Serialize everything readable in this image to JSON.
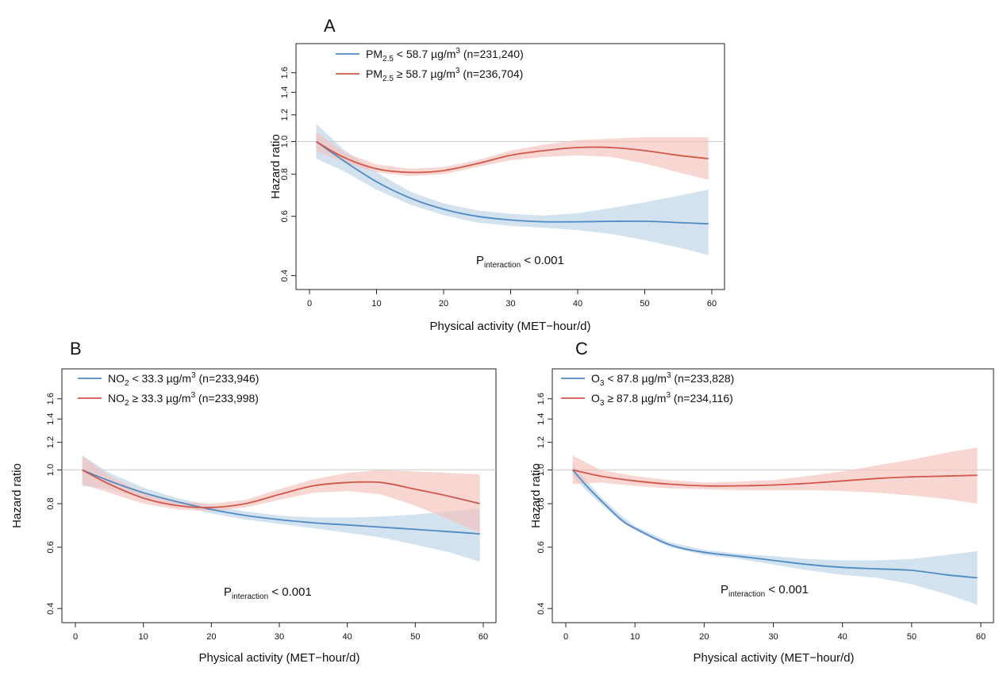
{
  "figure": {
    "colors": {
      "blue": "#4f8ac4",
      "blue_band": "#bcd3e6",
      "red": "#d1574a",
      "red_band": "#f4c2bc",
      "ref_line": "#cccccc"
    }
  },
  "chart_data": [
    {
      "type": "line",
      "panel": "A",
      "xlabel": "Physical activity (MET−hour/d)",
      "ylabel": "Hazard ratio",
      "y_scale": "log",
      "xlim": [
        0,
        62
      ],
      "ylim": [
        0.38,
        1.9
      ],
      "x_ticks": [
        0,
        10,
        20,
        30,
        40,
        50,
        60
      ],
      "y_ticks": [
        0.4,
        0.6,
        0.8,
        1.0,
        1.2,
        1.4,
        1.6
      ],
      "y_tick_labels": [
        "0.4",
        "0.6",
        "0.8",
        "1.0",
        "1.2",
        "1.4",
        "1.6"
      ],
      "reference_line": 1.0,
      "annotation": {
        "main": "P",
        "sub": "interaction",
        "rest": " < 0.001"
      },
      "series": [
        {
          "name": "PM2.5 < 58.7 µg/m3 (n=231,240)",
          "legend": {
            "main": "PM",
            "sub": "2.5",
            "mid": " < 58.7 µg/m",
            "sup": "3",
            "rest": " (n=231,240)"
          },
          "color": "blue",
          "x": [
            1,
            5,
            10,
            15,
            20,
            25,
            30,
            35,
            40,
            45,
            50,
            55,
            59.5
          ],
          "y": [
            1.0,
            0.88,
            0.76,
            0.68,
            0.63,
            0.6,
            0.585,
            0.578,
            0.578,
            0.58,
            0.58,
            0.575,
            0.57
          ],
          "lower": [
            0.89,
            0.82,
            0.72,
            0.65,
            0.605,
            0.575,
            0.562,
            0.555,
            0.546,
            0.532,
            0.51,
            0.485,
            0.46
          ],
          "upper": [
            1.13,
            0.95,
            0.81,
            0.71,
            0.655,
            0.625,
            0.61,
            0.603,
            0.613,
            0.635,
            0.66,
            0.69,
            0.72
          ]
        },
        {
          "name": "PM2.5 ≥ 58.7 µg/m3 (n=236,704)",
          "legend": {
            "main": "PM",
            "sub": "2.5",
            "mid": " ≥ 58.7 µg/m",
            "sup": "3",
            "rest": " (n=236,704)"
          },
          "color": "red",
          "x": [
            1,
            5,
            10,
            15,
            20,
            25,
            30,
            35,
            40,
            45,
            50,
            55,
            59.5
          ],
          "y": [
            1.0,
            0.9,
            0.83,
            0.81,
            0.82,
            0.86,
            0.91,
            0.94,
            0.96,
            0.96,
            0.94,
            0.91,
            0.89
          ],
          "lower": [
            0.94,
            0.87,
            0.81,
            0.79,
            0.8,
            0.84,
            0.88,
            0.9,
            0.91,
            0.9,
            0.86,
            0.81,
            0.77
          ],
          "upper": [
            1.07,
            0.93,
            0.855,
            0.83,
            0.84,
            0.88,
            0.94,
            0.98,
            1.01,
            1.02,
            1.03,
            1.03,
            1.03
          ]
        }
      ]
    },
    {
      "type": "line",
      "panel": "B",
      "xlabel": "Physical activity (MET−hour/d)",
      "ylabel": "Hazard ratio",
      "y_scale": "log",
      "xlim": [
        -1,
        62
      ],
      "ylim": [
        0.38,
        1.9
      ],
      "x_ticks": [
        0,
        10,
        20,
        30,
        40,
        50,
        60
      ],
      "y_ticks": [
        0.4,
        0.6,
        0.8,
        1.0,
        1.2,
        1.4,
        1.6
      ],
      "y_tick_labels": [
        "0.4",
        "0.6",
        "0.8",
        "1.0",
        "1.2",
        "1.4",
        "1.6"
      ],
      "reference_line": 1.0,
      "annotation": {
        "main": "P",
        "sub": "interaction",
        "rest": " < 0.001"
      },
      "series": [
        {
          "name": "NO2 < 33.3 µg/m3 (n=233,946)",
          "legend": {
            "main": "NO",
            "sub": "2",
            "mid": " < 33.3 µg/m",
            "sup": "3",
            "rest": " (n=233,946)"
          },
          "color": "blue",
          "x": [
            1,
            5,
            10,
            15,
            20,
            25,
            30,
            35,
            40,
            45,
            50,
            55,
            59.5
          ],
          "y": [
            1.0,
            0.93,
            0.86,
            0.81,
            0.77,
            0.74,
            0.72,
            0.705,
            0.695,
            0.685,
            0.675,
            0.665,
            0.655
          ],
          "lower": [
            0.9,
            0.88,
            0.83,
            0.79,
            0.75,
            0.72,
            0.7,
            0.68,
            0.66,
            0.64,
            0.61,
            0.58,
            0.545
          ],
          "upper": [
            1.1,
            0.98,
            0.89,
            0.83,
            0.79,
            0.76,
            0.74,
            0.73,
            0.73,
            0.735,
            0.745,
            0.76,
            0.775
          ]
        },
        {
          "name": "NO2 ≥ 33.3 µg/m3 (n=233,998)",
          "legend": {
            "main": "NO",
            "sub": "2",
            "mid": " ≥ 33.3 µg/m",
            "sup": "3",
            "rest": " (n=233,998)"
          },
          "color": "red",
          "x": [
            1,
            5,
            10,
            15,
            20,
            25,
            30,
            35,
            40,
            45,
            50,
            55,
            59.5
          ],
          "y": [
            1.0,
            0.91,
            0.83,
            0.79,
            0.78,
            0.8,
            0.85,
            0.9,
            0.92,
            0.92,
            0.88,
            0.84,
            0.8
          ],
          "lower": [
            0.91,
            0.86,
            0.8,
            0.77,
            0.76,
            0.78,
            0.82,
            0.86,
            0.87,
            0.85,
            0.79,
            0.72,
            0.66
          ],
          "upper": [
            1.1,
            0.96,
            0.86,
            0.81,
            0.8,
            0.82,
            0.88,
            0.94,
            0.98,
            1.0,
            0.99,
            0.98,
            0.97
          ]
        }
      ]
    },
    {
      "type": "line",
      "panel": "C",
      "xlabel": "Physical activity (MET−hour/d)",
      "ylabel": "Hazard ratio",
      "y_scale": "log",
      "xlim": [
        -1,
        62
      ],
      "ylim": [
        0.38,
        1.9
      ],
      "x_ticks": [
        0,
        10,
        20,
        30,
        40,
        50,
        60
      ],
      "y_ticks": [
        0.4,
        0.6,
        0.8,
        1.0,
        1.2,
        1.4,
        1.6
      ],
      "y_tick_labels": [
        "0.4",
        "0.6",
        "0.8",
        "1.0",
        "1.2",
        "1.4",
        "1.6"
      ],
      "reference_line": 1.0,
      "annotation": {
        "main": "P",
        "sub": "interaction",
        "rest": " < 0.001"
      },
      "series": [
        {
          "name": "O3 < 87.8  µg/m3 (n=233,828)",
          "legend": {
            "main": "O",
            "sub": "3",
            "mid": " < 87.8  µg/m",
            "sup": "3",
            "rest": " (n=233,828)"
          },
          "color": "blue",
          "x": [
            1,
            3,
            5,
            8,
            10,
            15,
            20,
            25,
            30,
            35,
            40,
            45,
            50,
            55,
            59.5
          ],
          "y": [
            1.0,
            0.9,
            0.82,
            0.72,
            0.68,
            0.61,
            0.58,
            0.565,
            0.55,
            0.535,
            0.525,
            0.52,
            0.515,
            0.5,
            0.49
          ],
          "lower": [
            0.96,
            0.87,
            0.8,
            0.71,
            0.67,
            0.6,
            0.57,
            0.555,
            0.535,
            0.515,
            0.5,
            0.49,
            0.47,
            0.44,
            0.41
          ],
          "upper": [
            1.04,
            0.93,
            0.84,
            0.74,
            0.69,
            0.62,
            0.59,
            0.575,
            0.565,
            0.555,
            0.55,
            0.55,
            0.555,
            0.57,
            0.585
          ]
        },
        {
          "name": "O3 ≥ 87.8 µg/m3 (n=234,116)",
          "legend": {
            "main": "O",
            "sub": "3",
            "mid": " ≥ 87.8 µg/m",
            "sup": "3",
            "rest": " (n=234,116)"
          },
          "color": "red",
          "x": [
            1,
            5,
            10,
            15,
            20,
            25,
            30,
            35,
            40,
            45,
            50,
            55,
            59.5
          ],
          "y": [
            1.0,
            0.96,
            0.93,
            0.91,
            0.9,
            0.9,
            0.905,
            0.915,
            0.93,
            0.945,
            0.955,
            0.96,
            0.965
          ],
          "lower": [
            0.91,
            0.92,
            0.9,
            0.885,
            0.88,
            0.875,
            0.875,
            0.875,
            0.87,
            0.86,
            0.845,
            0.825,
            0.8
          ],
          "upper": [
            1.1,
            1.0,
            0.96,
            0.935,
            0.92,
            0.925,
            0.935,
            0.96,
            0.99,
            1.03,
            1.07,
            1.12,
            1.16
          ]
        }
      ]
    }
  ]
}
